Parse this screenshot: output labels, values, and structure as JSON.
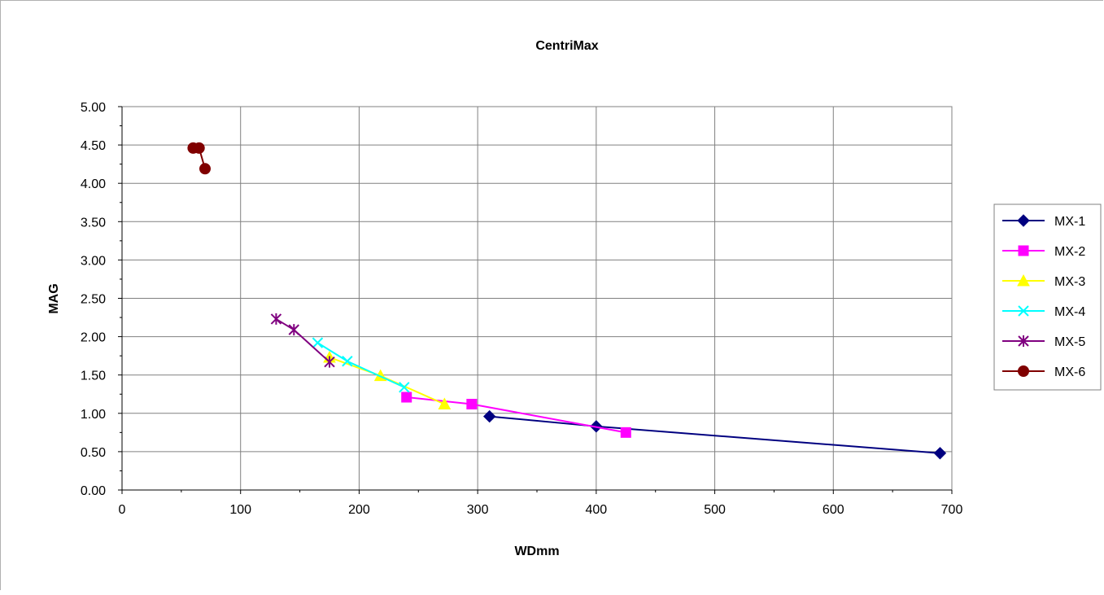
{
  "chart_data": {
    "type": "scatter",
    "title": "CentriMax",
    "xlabel": "WDmm",
    "ylabel": "MAG",
    "xlim": [
      0,
      700
    ],
    "ylim": [
      0,
      5
    ],
    "x_ticks": [
      "0",
      "100",
      "200",
      "300",
      "400",
      "500",
      "600",
      "700"
    ],
    "y_ticks": [
      "0.00",
      "0.50",
      "1.00",
      "1.50",
      "2.00",
      "2.50",
      "3.00",
      "3.50",
      "4.00",
      "4.50",
      "5.00"
    ],
    "grid": true,
    "legend_position": "right",
    "series": [
      {
        "name": "MX-1",
        "color": "#000080",
        "marker": "diamond",
        "x": [
          310,
          400,
          690
        ],
        "y": [
          0.96,
          0.83,
          0.48
        ]
      },
      {
        "name": "MX-2",
        "color": "#FF00FF",
        "marker": "square",
        "x": [
          240,
          295,
          425
        ],
        "y": [
          1.21,
          1.12,
          0.75
        ]
      },
      {
        "name": "MX-3",
        "color": "#FFFF00",
        "marker": "triangle",
        "x": [
          175,
          218,
          272
        ],
        "y": [
          1.73,
          1.49,
          1.12
        ]
      },
      {
        "name": "MX-4",
        "color": "#00FFFF",
        "marker": "x",
        "x": [
          165,
          190,
          238
        ],
        "y": [
          1.92,
          1.68,
          1.34
        ]
      },
      {
        "name": "MX-5",
        "color": "#800080",
        "marker": "star",
        "x": [
          130,
          145,
          175
        ],
        "y": [
          2.23,
          2.09,
          1.67
        ]
      },
      {
        "name": "MX-6",
        "color": "#800000",
        "marker": "circle",
        "x": [
          60,
          65,
          70
        ],
        "y": [
          4.46,
          4.46,
          4.19
        ]
      }
    ]
  }
}
